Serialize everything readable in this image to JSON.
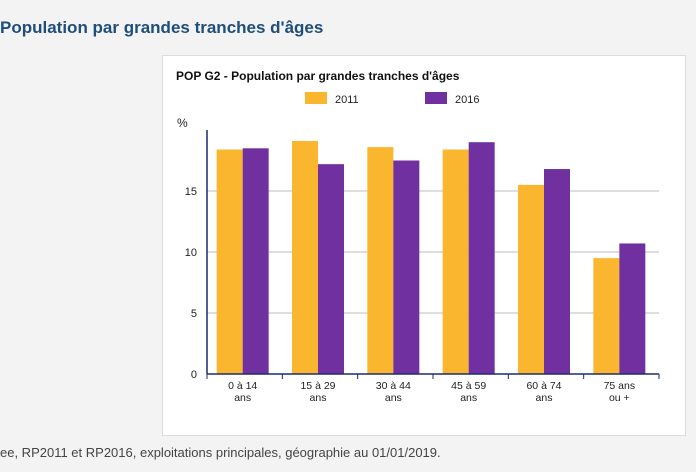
{
  "page": {
    "heading": "Population par grandes tranches d'âges",
    "source_note": "ee, RP2011 et RP2016, exploitations principales, géographie au 01/01/2019."
  },
  "chart_data": {
    "type": "bar",
    "title": "POP G2 - Population par grandes tranches d'âges",
    "ylabel": "%",
    "xlabel": "",
    "categories": [
      [
        "0 à 14",
        "ans"
      ],
      [
        "15 à 29",
        "ans"
      ],
      [
        "30 à 44",
        "ans"
      ],
      [
        "45 à 59",
        "ans"
      ],
      [
        "60 à 74",
        "ans"
      ],
      [
        "75 ans",
        "ou +"
      ]
    ],
    "series": [
      {
        "name": "2011",
        "color": "#fbb62f",
        "values": [
          18.4,
          19.1,
          18.6,
          18.4,
          15.5,
          9.5
        ]
      },
      {
        "name": "2016",
        "color": "#7030a0",
        "values": [
          18.5,
          17.2,
          17.5,
          19.0,
          16.8,
          10.7
        ]
      }
    ],
    "yticks": [
      0,
      5,
      10,
      15
    ],
    "ylim": [
      0,
      20
    ],
    "grid": true,
    "legend_position": "top"
  }
}
